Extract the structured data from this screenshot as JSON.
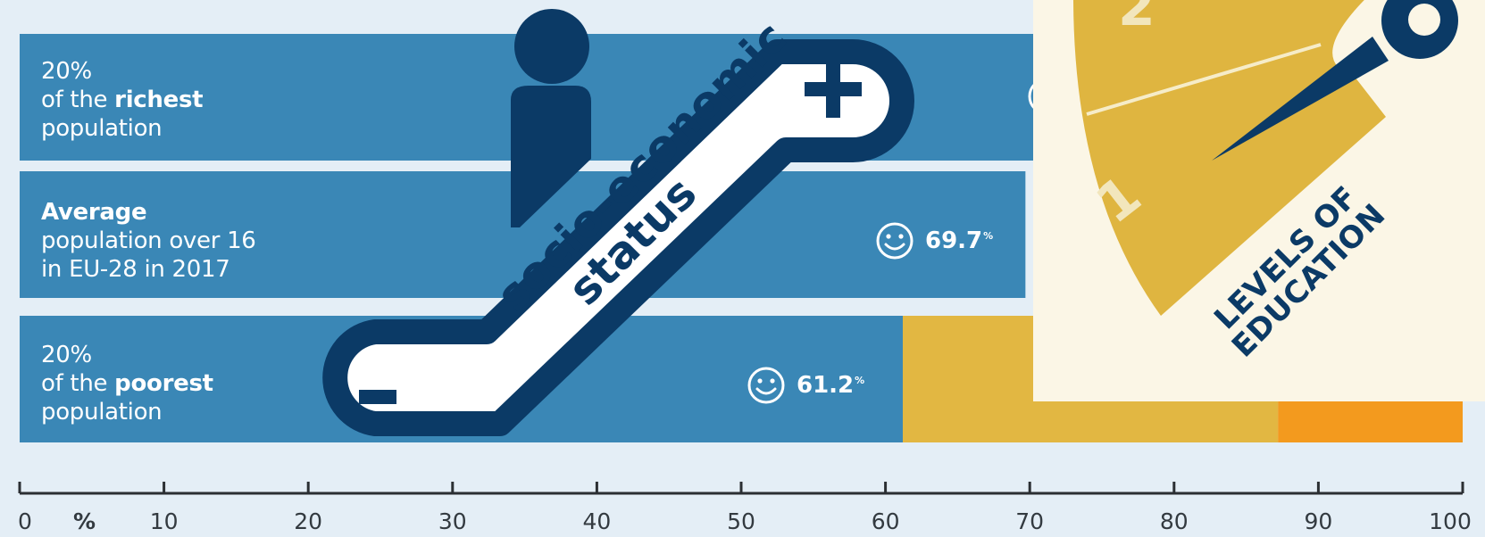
{
  "chart_data": {
    "type": "bar",
    "orientation": "horizontal",
    "stacked": true,
    "categories": [
      "20% of the richest population",
      "Average population over 16 in EU-28 in 2017",
      "20% of the poorest population"
    ],
    "series": [
      {
        "values": [
          null,
          69.7,
          61.2
        ],
        "color": "#3a87b6"
      },
      {
        "values": [
          null,
          null,
          26.0
        ],
        "color": "#e2b742"
      },
      {
        "values": [
          null,
          null,
          12.8
        ],
        "color": "#f39a1e"
      }
    ],
    "xlim": [
      0,
      100
    ],
    "xticks": [
      "0",
      "10",
      "20",
      "30",
      "40",
      "50",
      "60",
      "70",
      "80",
      "90",
      "100"
    ],
    "xunit": "%"
  },
  "rows": [
    {
      "line1": "20%",
      "line2_pre": "of the ",
      "line2_bold": "richest",
      "line3": "population"
    },
    {
      "line1": "Average",
      "line2": "population over 16",
      "line3": "in EU-28 in 2017"
    },
    {
      "line1": "20%",
      "line2_pre": "of the ",
      "line2_bold": "poorest",
      "line3": "population"
    }
  ],
  "data_labels": [
    {
      "value": "69.7",
      "suffix": "%"
    },
    {
      "value": "61.2",
      "suffix": "%"
    }
  ],
  "escalator": {
    "line1": "socio-economic",
    "line2": "status",
    "plus": "+",
    "minus": "-"
  },
  "education": {
    "title_line1": "LEVELS OF",
    "title_line2": "EDUCATION",
    "level_1": "1",
    "level_2": "2"
  },
  "colors": {
    "blue": "#3a87b6",
    "yellow": "#e2b742",
    "orange": "#f39a1e",
    "navy": "#0b3a66"
  }
}
